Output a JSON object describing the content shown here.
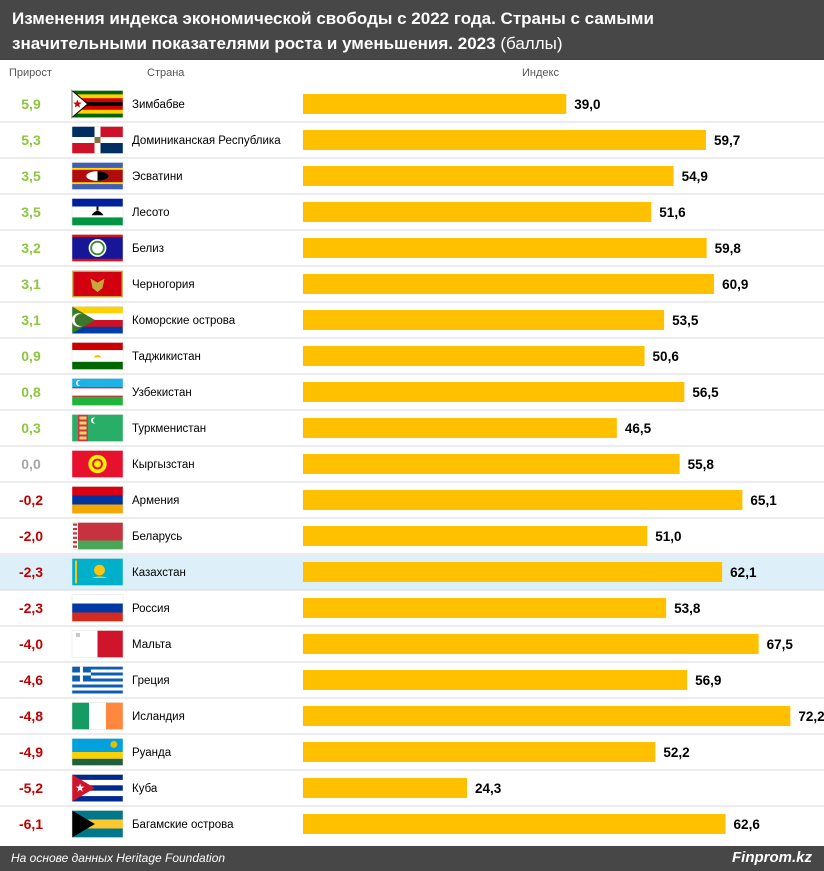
{
  "header": {
    "title_line1": "Изменения индекса экономической свободы с 2022 года. Страны с самыми",
    "title_line2": "значительными показателями роста и уменьшения. 2023",
    "title_suffix": "(баллы)"
  },
  "columns": {
    "growth": "Прирост",
    "country": "Страна",
    "index": "Индекс"
  },
  "footer": {
    "source": "На основе данных Heritage Foundation",
    "brand": "Finprom.kz"
  },
  "colors": {
    "bar": "#FFC000",
    "positive": "#8DC63F",
    "zero": "#A6A6A6",
    "negative": "#C00000",
    "highlight": "#DDF0FA",
    "divider": "#D9D9D9",
    "header_bg": "#474747"
  },
  "chart_data": {
    "type": "bar",
    "orientation": "horizontal",
    "xlim": [
      0,
      80
    ],
    "highlight_category": "Казахстан",
    "categories": [
      "Зимбабве",
      "Доминиканская Республика",
      "Эсватини",
      "Лесото",
      "Белиз",
      "Черногория",
      "Коморские острова",
      "Таджикистан",
      "Узбекистан",
      "Туркменистан",
      "Кыргызстан",
      "Армения",
      "Беларусь",
      "Казахстан",
      "Россия",
      "Мальта",
      "Греция",
      "Исландия",
      "Руанда",
      "Куба",
      "Багамские острова"
    ],
    "values": [
      39.0,
      59.7,
      54.9,
      51.6,
      59.8,
      60.9,
      53.5,
      50.6,
      56.5,
      46.5,
      55.8,
      65.1,
      51.0,
      62.1,
      53.8,
      67.5,
      56.9,
      72.2,
      52.2,
      24.3,
      62.6
    ],
    "value_labels": [
      "39,0",
      "59,7",
      "54,9",
      "51,6",
      "59,8",
      "60,9",
      "53,5",
      "50,6",
      "56,5",
      "46,5",
      "55,8",
      "65,1",
      "51,0",
      "62,1",
      "53,8",
      "67,5",
      "56,9",
      "72,2",
      "52,2",
      "24,3",
      "62,6"
    ],
    "growth": [
      5.9,
      5.3,
      3.5,
      3.5,
      3.2,
      3.1,
      3.1,
      0.9,
      0.8,
      0.3,
      0.0,
      -0.2,
      -2.0,
      -2.3,
      -2.3,
      -4.0,
      -4.6,
      -4.8,
      -4.9,
      -5.2,
      -6.1
    ],
    "growth_labels": [
      "5,9",
      "5,3",
      "3,5",
      "3,5",
      "3,2",
      "3,1",
      "3,1",
      "0,9",
      "0,8",
      "0,3",
      "0,0",
      "-0,2",
      "-2,0",
      "-2,3",
      "-2,3",
      "-4,0",
      "-4,6",
      "-4,8",
      "-4,9",
      "-5,2",
      "-6,1"
    ],
    "flags": [
      "zimbabwe-flag",
      "dominican-republic-flag",
      "eswatini-flag",
      "lesotho-flag",
      "belize-flag",
      "montenegro-flag",
      "comoros-flag",
      "tajikistan-flag",
      "uzbekistan-flag",
      "turkmenistan-flag",
      "kyrgyzstan-flag",
      "armenia-flag",
      "belarus-flag",
      "kazakhstan-flag",
      "russia-flag",
      "malta-flag",
      "greece-flag",
      "iceland-flag",
      "rwanda-flag",
      "cuba-flag",
      "bahamas-flag"
    ]
  }
}
